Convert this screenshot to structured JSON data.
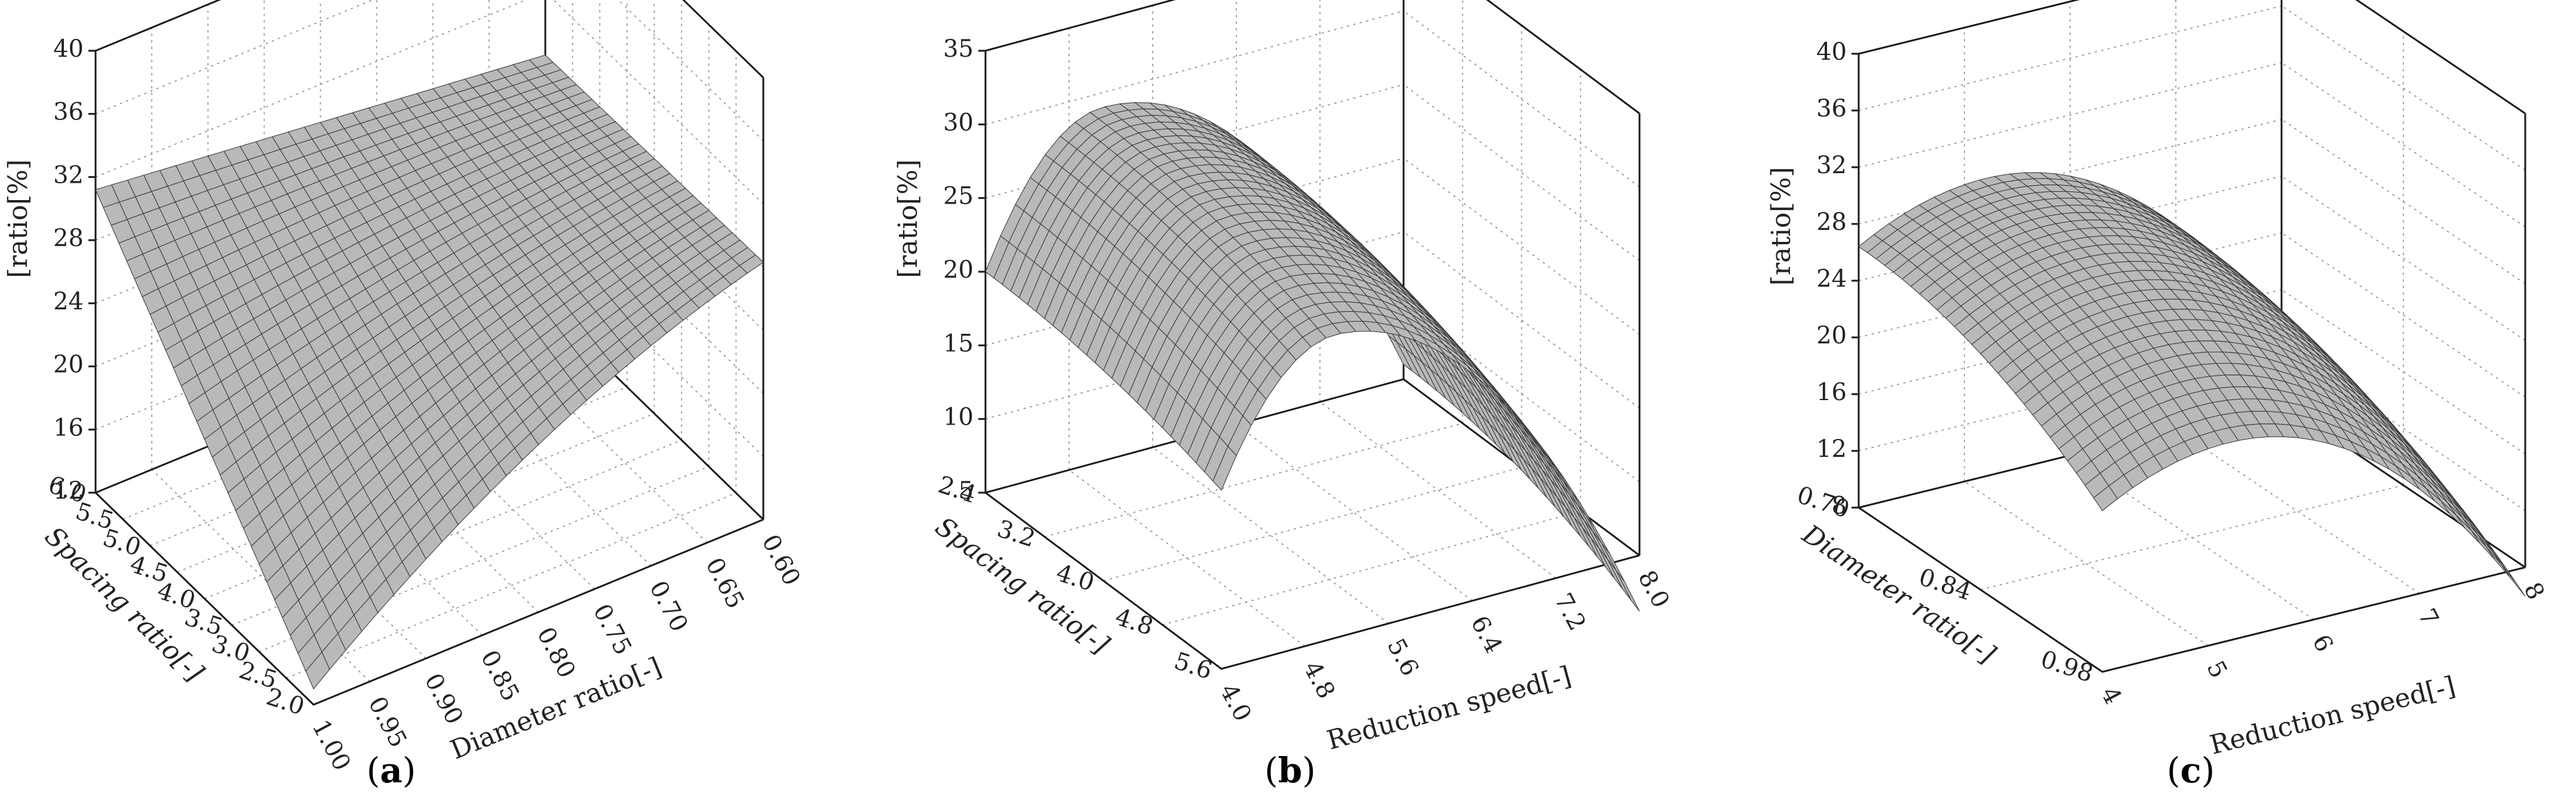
{
  "chart_data": [
    {
      "id": "a",
      "panel_label": "a",
      "type": "surface3d",
      "zlabel": "ratio[%]",
      "zlabel_prefix": "[",
      "xlabel": "Diameter ratio[-]",
      "ylabel": "Spacing ratio[-]",
      "zticks": [
        "12",
        "16",
        "20",
        "24",
        "28",
        "32",
        "36",
        "40"
      ],
      "xticks": [
        "1.00",
        "0.95",
        "0.90",
        "0.85",
        "0.80",
        "0.75",
        "0.70",
        "0.65",
        "0.60"
      ],
      "yticks": [
        "2.0",
        "2.5",
        "3.0",
        "3.5",
        "4.0",
        "4.5",
        "5.0",
        "5.5",
        "6.0"
      ],
      "zlim": [
        12,
        40
      ],
      "xlim": [
        1.0,
        0.6
      ],
      "ylim": [
        2.0,
        6.0
      ],
      "corner_values": {
        "x_min_y_max": 31.2,
        "x_max_y_max": 28.0,
        "x_min_y_min": 13.0,
        "x_max_y_min": 28.3
      },
      "grid": true
    },
    {
      "id": "b",
      "panel_label": "b",
      "type": "surface3d",
      "zlabel": "ratio[%]",
      "zlabel_prefix": "[",
      "xlabel": "Reduction speed[-]",
      "ylabel": "Spacing ratio[-]",
      "zticks": [
        "5",
        "10",
        "15",
        "20",
        "25",
        "30",
        "35"
      ],
      "xticks": [
        "4.0",
        "4.8",
        "5.6",
        "6.4",
        "7.2",
        "8.0"
      ],
      "yticks": [
        "5.6",
        "4.8",
        "4.0",
        "3.2",
        "2.4"
      ],
      "zlim": [
        5,
        35
      ],
      "xlim": [
        4.0,
        8.0
      ],
      "ylim": [
        5.6,
        2.4
      ],
      "peak_value": 29.0,
      "corner_values": {
        "x_min_y_back": 20.0,
        "x_max_y_back": 6.0,
        "x_min_y_front": 20.0
      },
      "grid": true
    },
    {
      "id": "c",
      "panel_label": "c",
      "type": "surface3d",
      "zlabel": "ratio[%]",
      "zlabel_prefix": "[",
      "xlabel": "Reduction speed[-]",
      "ylabel": "Diameter ratio[-]",
      "zticks": [
        "8",
        "12",
        "16",
        "20",
        "24",
        "28",
        "32",
        "36",
        "40"
      ],
      "xticks": [
        "4",
        "5",
        "6",
        "7",
        "8"
      ],
      "yticks": [
        "0.98",
        "0.84",
        "0.70"
      ],
      "zlim": [
        8,
        40
      ],
      "xlim": [
        4,
        8
      ],
      "ylim": [
        0.98,
        0.56
      ],
      "peak_value": 29.0,
      "corner_values": {
        "x_min_y_back": 26.4,
        "x_max_y_back": 13.0,
        "x_min_y_front": 15.0
      },
      "grid": true
    }
  ]
}
